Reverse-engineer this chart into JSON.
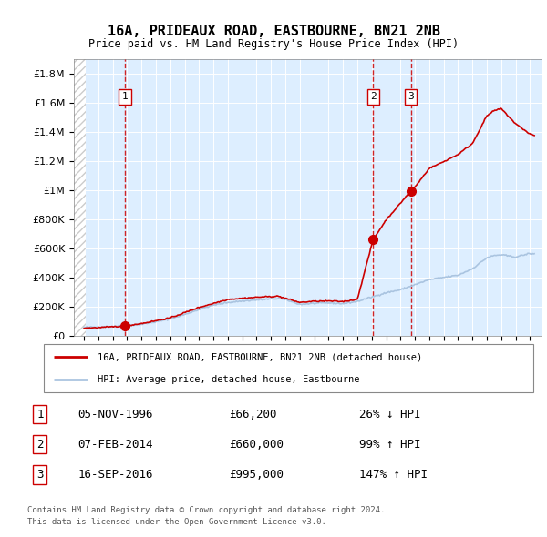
{
  "title_line1": "16A, PRIDEAUX ROAD, EASTBOURNE, BN21 2NB",
  "title_line2": "Price paid vs. HM Land Registry's House Price Index (HPI)",
  "legend_label1": "16A, PRIDEAUX ROAD, EASTBOURNE, BN21 2NB (detached house)",
  "legend_label2": "HPI: Average price, detached house, Eastbourne",
  "transactions": [
    {
      "num": 1,
      "date": "1996-11-05",
      "price": 66200,
      "pct": "26%",
      "dir": "↓"
    },
    {
      "num": 2,
      "date": "2014-02-07",
      "price": 660000,
      "pct": "99%",
      "dir": "↑"
    },
    {
      "num": 3,
      "date": "2016-09-16",
      "price": 995000,
      "pct": "147%",
      "dir": "↑"
    }
  ],
  "table_rows": [
    [
      "1",
      "05-NOV-1996",
      "£66,200",
      "26% ↓ HPI"
    ],
    [
      "2",
      "07-FEB-2014",
      "£660,000",
      "99% ↑ HPI"
    ],
    [
      "3",
      "16-SEP-2016",
      "£995,000",
      "147% ↑ HPI"
    ]
  ],
  "footer_line1": "Contains HM Land Registry data © Crown copyright and database right 2024.",
  "footer_line2": "This data is licensed under the Open Government Licence v3.0.",
  "hpi_color": "#aac4e0",
  "price_color": "#cc0000",
  "vline_color": "#cc0000",
  "plot_bg_color": "#ddeeff",
  "ylim_max": 1900000,
  "ylim_min": 0,
  "hpi_anchors_t": [
    1994.0,
    1995.0,
    1996.0,
    1997.0,
    1998.0,
    1999.0,
    2000.0,
    2001.0,
    2002.0,
    2003.0,
    2004.0,
    2005.0,
    2006.0,
    2007.0,
    2007.5,
    2008.0,
    2009.0,
    2010.0,
    2011.0,
    2012.0,
    2013.0,
    2014.0,
    2015.0,
    2016.0,
    2017.0,
    2018.0,
    2019.0,
    2020.0,
    2021.0,
    2022.0,
    2022.5,
    2023.0,
    2024.0,
    2025.0,
    2025.3
  ],
  "hpi_anchors_v": [
    57000,
    59000,
    63000,
    70000,
    78000,
    95000,
    115000,
    145000,
    180000,
    210000,
    228000,
    238000,
    245000,
    252000,
    255000,
    248000,
    215000,
    222000,
    225000,
    220000,
    235000,
    265000,
    295000,
    315000,
    350000,
    385000,
    400000,
    415000,
    460000,
    535000,
    550000,
    555000,
    540000,
    565000,
    560000
  ],
  "price_anchors_t": [
    1994.0,
    1995.0,
    1996.0,
    1996.84,
    1998.0,
    2000.0,
    2002.0,
    2004.0,
    2006.0,
    2007.5,
    2009.0,
    2010.0,
    2011.0,
    2012.0,
    2013.0,
    2014.1,
    2015.0,
    2016.0,
    2016.71,
    2017.0,
    2018.0,
    2019.0,
    2020.0,
    2021.0,
    2022.0,
    2022.5,
    2023.0,
    2024.0,
    2025.0,
    2025.3
  ],
  "price_anchors_v": [
    52000,
    55000,
    61000,
    66200,
    83000,
    122000,
    194000,
    249000,
    264000,
    271000,
    228000,
    236000,
    238000,
    234000,
    250000,
    660000,
    795000,
    910000,
    995000,
    1020000,
    1150000,
    1195000,
    1245000,
    1320000,
    1510000,
    1545000,
    1560000,
    1455000,
    1385000,
    1375000
  ],
  "t_dates_num": [
    1996.84,
    2014.1,
    2016.71
  ],
  "t_prices_marked": [
    66200,
    660000,
    995000
  ]
}
